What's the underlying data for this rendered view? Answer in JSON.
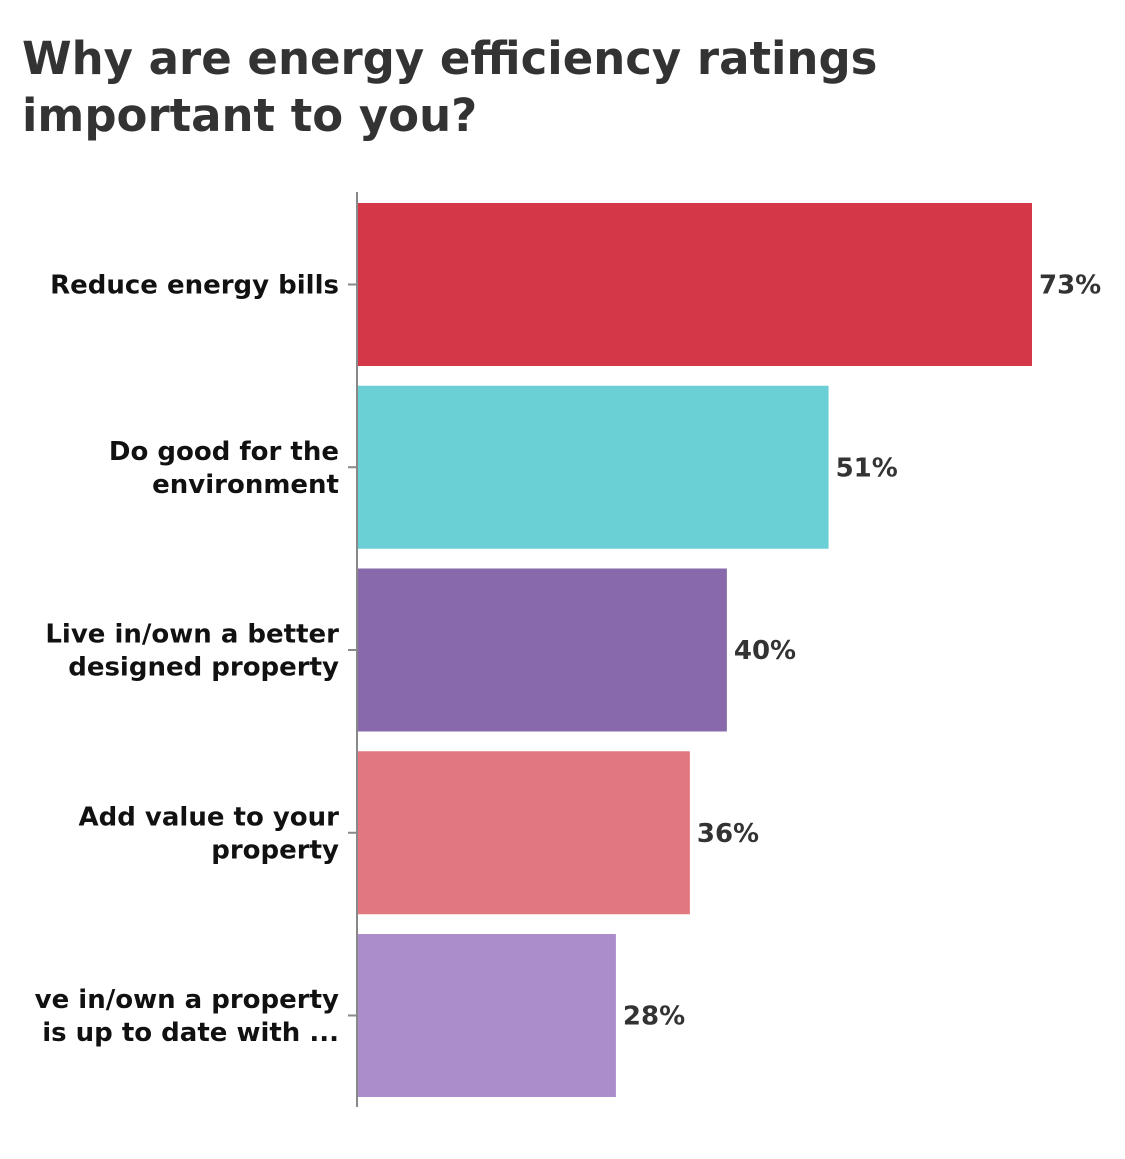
{
  "chart_data": {
    "type": "bar",
    "orientation": "horizontal",
    "title": "Why are energy efficiency ratings important to you?",
    "categories": [
      "Reduce energy bills",
      "Do good for the environment",
      "Live in/own a better designed property",
      "Add value to your property",
      "ve in/own a property is up to date with ..."
    ],
    "category_lines": [
      [
        "Reduce energy bills"
      ],
      [
        "Do good for the",
        "environment"
      ],
      [
        "Live in/own a better",
        "designed property"
      ],
      [
        "Add value to your",
        "property"
      ],
      [
        "ve in/own a property",
        "is up to date with ..."
      ]
    ],
    "values": [
      73,
      51,
      40,
      36,
      28
    ],
    "value_labels": [
      "73%",
      "51%",
      "40%",
      "36%",
      "28%"
    ],
    "colors": [
      "#d33748",
      "#6bd0d5",
      "#8869ab",
      "#e17880",
      "#ac8dcb"
    ],
    "xlim": [
      0,
      73
    ],
    "grid": false,
    "legend": "none"
  }
}
